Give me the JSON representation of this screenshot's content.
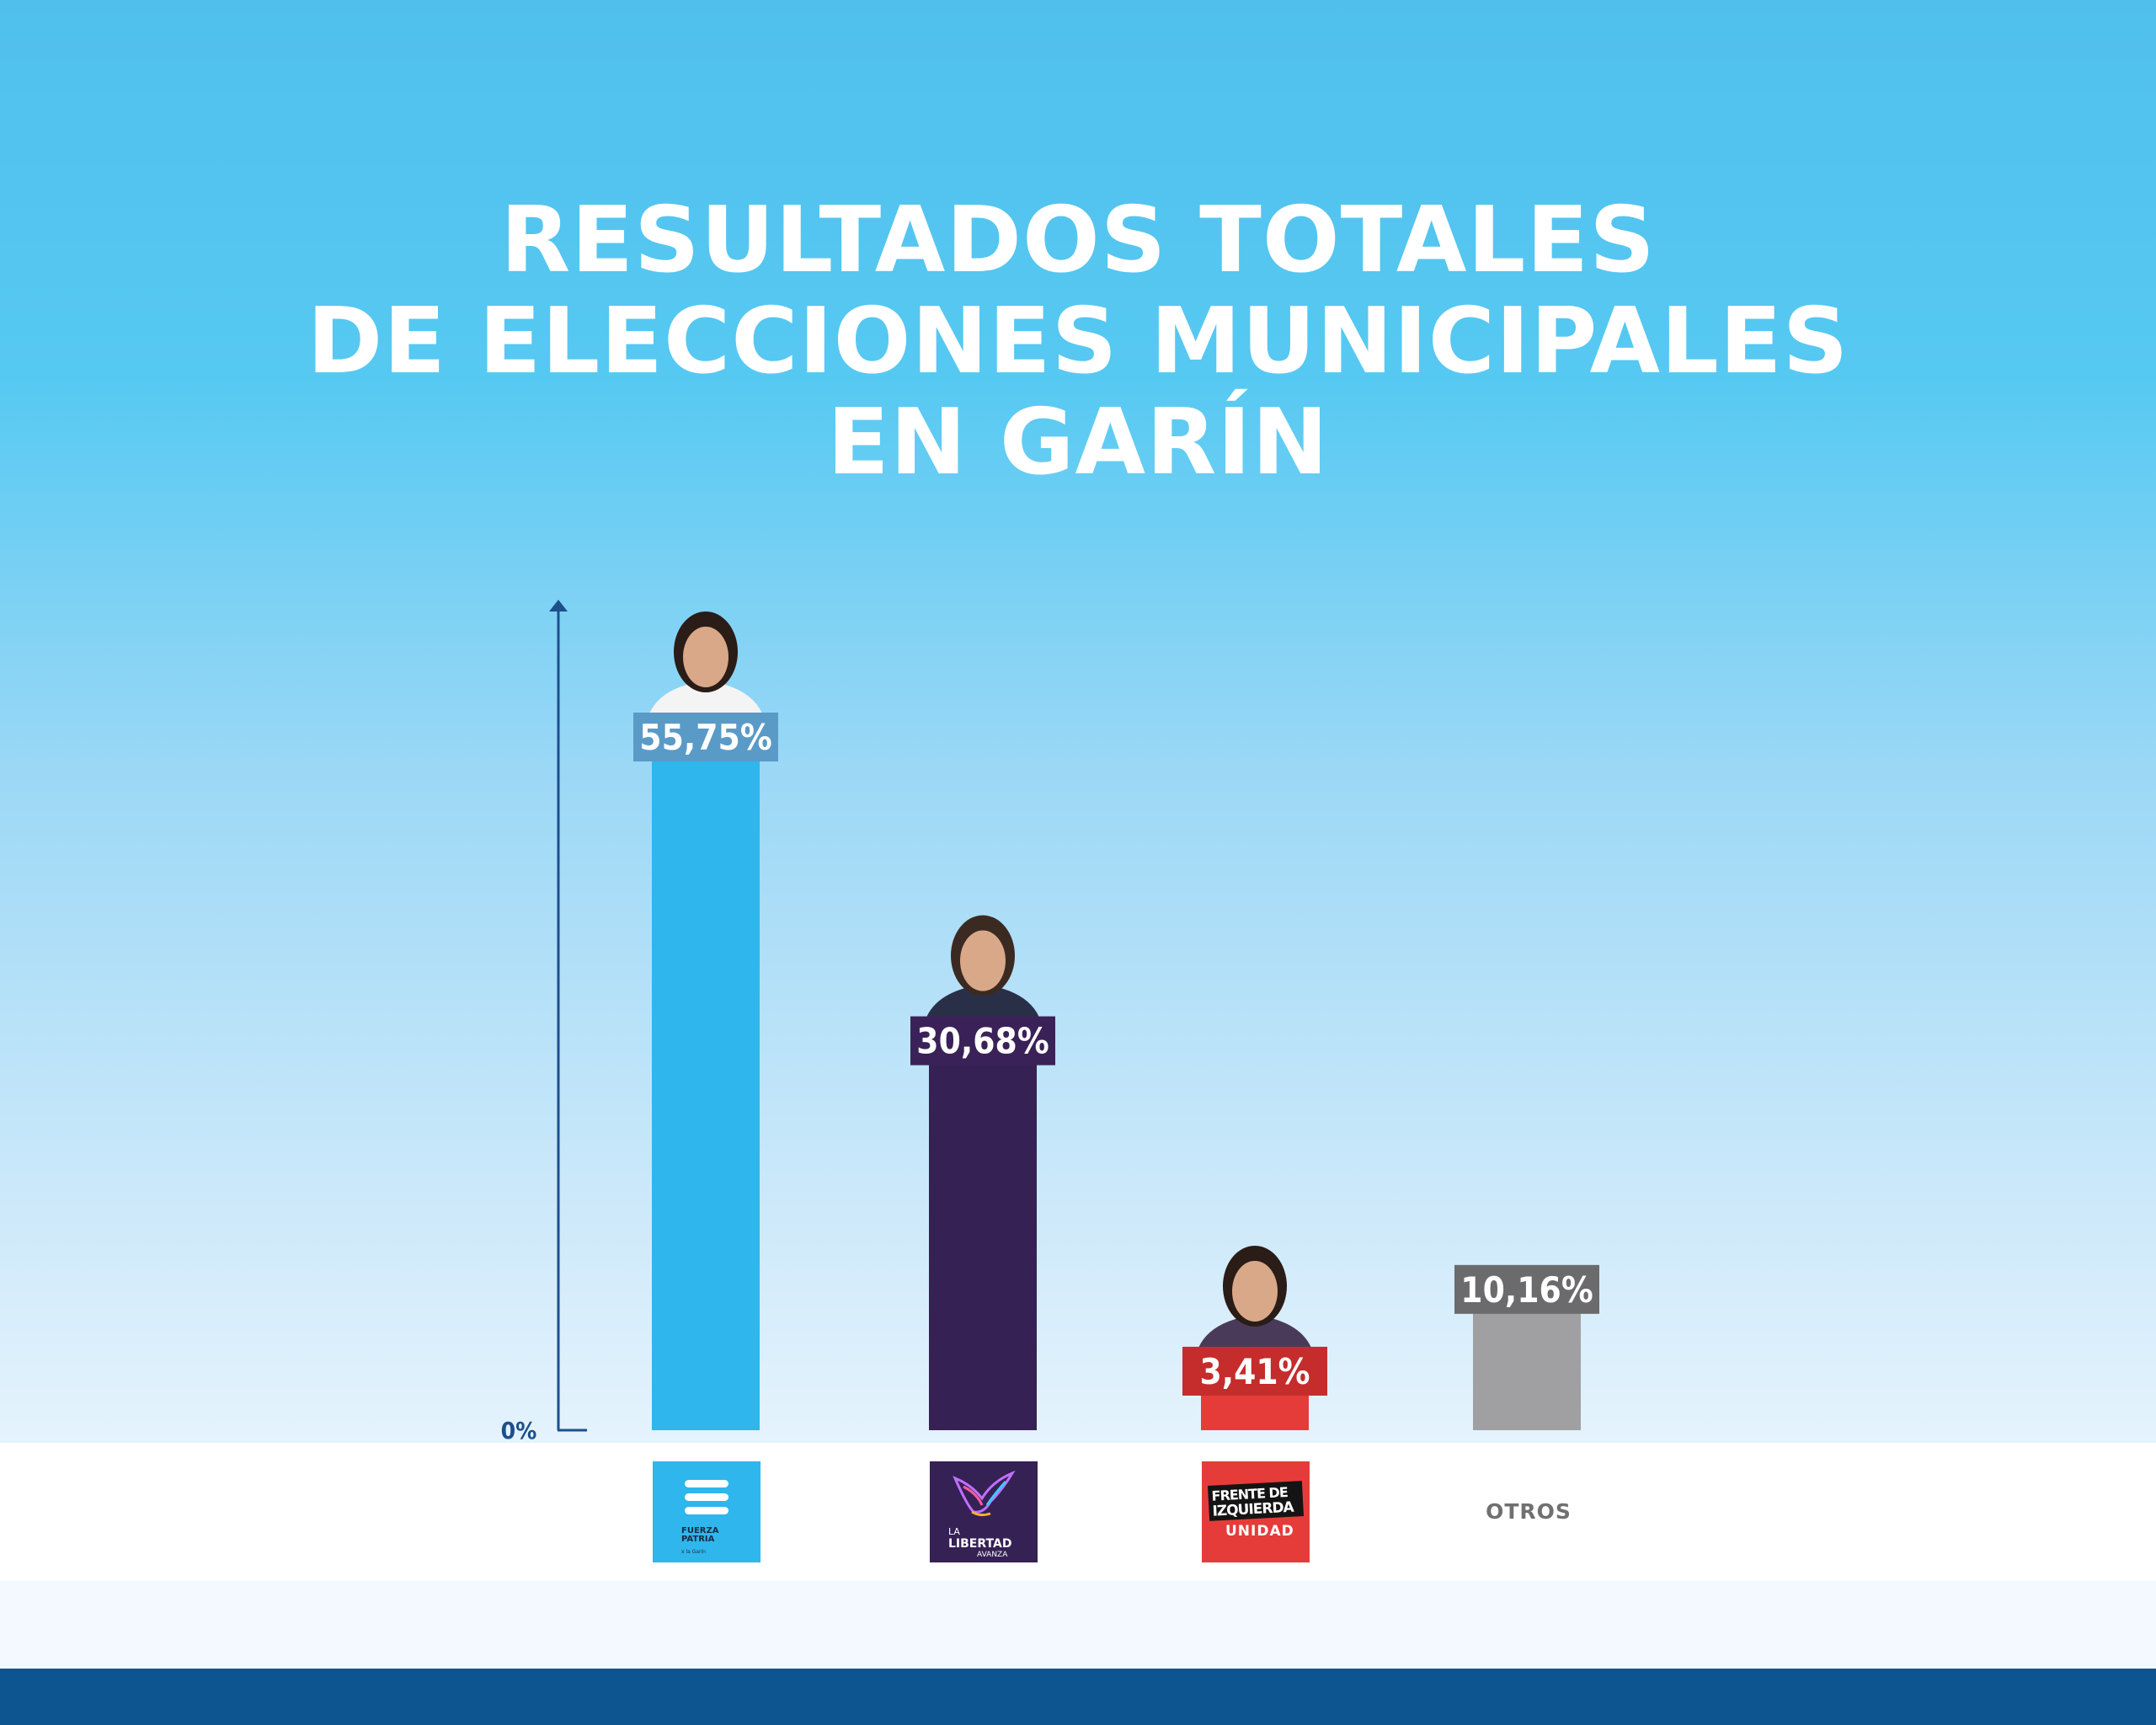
{
  "chart_data": {
    "type": "bar",
    "title_lines": [
      "RESULTADOS TOTALES",
      "DE ELECCIONES MUNICIPALES",
      "EN GARÍN"
    ],
    "y_axis_label": "0%",
    "ylim": [
      0,
      60
    ],
    "categories": [
      "FUERZA PATRIA",
      "LA LIBERTAD AVANZA",
      "FRENTE DE IZQUIERDA UNIDAD",
      "OTROS"
    ],
    "values": [
      55.75,
      30.68,
      3.41,
      10.16
    ],
    "value_labels": [
      "55,75%",
      "30,68%",
      "3,41%",
      "10,16%"
    ],
    "bar_colors": [
      "#2fb6ec",
      "#352154",
      "#e53c3a",
      "#a0a0a2"
    ],
    "label_colors": [
      "#5a9ac7",
      "#3a2258",
      "#c42d2c",
      "#6b6b6d"
    ],
    "candidate_photo": [
      true,
      true,
      true,
      false
    ]
  },
  "logos": {
    "fuerza_patria": {
      "line1": "FUERZA",
      "line2": "PATRIA",
      "sub": "x la Garín",
      "icon": "flag-stripes-icon"
    },
    "libertad_avanza": {
      "line1": "LA",
      "line2": "LIBERTAD",
      "line3": "AVANZA",
      "icon": "eagle-icon"
    },
    "frente_izquierda": {
      "line1": "FRENTE DE",
      "line2": "IZQUIERDA",
      "line3": "UNIDAD"
    },
    "otros": "OTROS"
  }
}
